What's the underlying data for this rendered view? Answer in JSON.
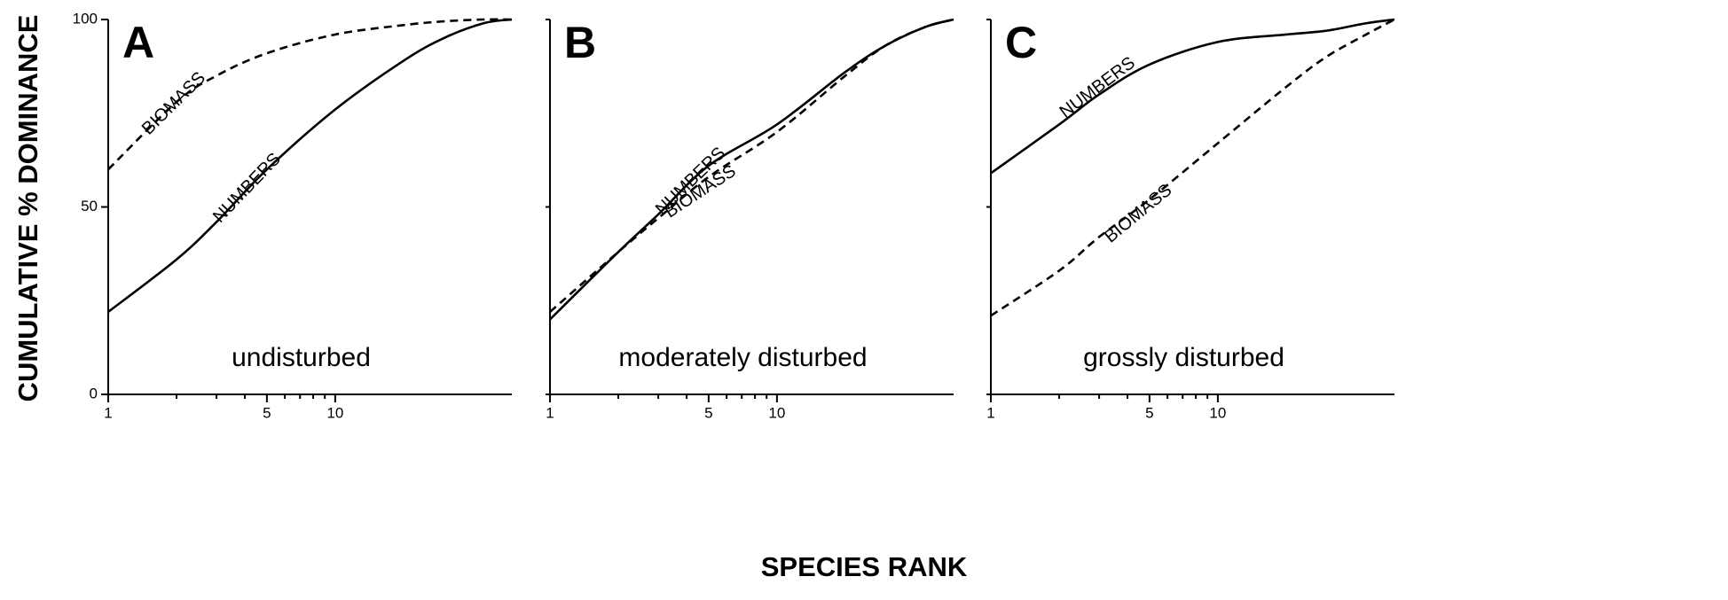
{
  "chart_data": [
    {
      "type": "line",
      "label": "A",
      "annotation": "undisturbed",
      "ylabel": "CUMULATIVE % DOMINANCE",
      "log_x": true,
      "xlim": [
        1,
        60
      ],
      "xticks": [
        1,
        5,
        10
      ],
      "minor_xticks": [
        2,
        3,
        4,
        6,
        7,
        8,
        9
      ],
      "ylim": [
        0,
        100
      ],
      "yticks": [
        0,
        50,
        100
      ],
      "x": [
        1,
        2,
        3,
        5,
        10,
        20,
        30,
        45,
        60
      ],
      "series": [
        {
          "name": "NUMBERS",
          "color": "#000000",
          "style": "solid",
          "values": [
            22,
            36,
            46,
            60,
            76,
            89,
            95,
            99,
            100
          ]
        },
        {
          "name": "BIOMASS",
          "color": "#000000",
          "style": "dashed",
          "values": [
            60,
            78,
            85,
            91,
            96,
            98.5,
            99.5,
            100,
            100
          ]
        }
      ]
    },
    {
      "type": "line",
      "label": "B",
      "annotation": "moderately disturbed",
      "xlabel": "SPECIES RANK",
      "log_x": true,
      "xlim": [
        1,
        60
      ],
      "xticks": [
        1,
        5,
        10
      ],
      "minor_xticks": [
        2,
        3,
        4,
        6,
        7,
        8,
        9
      ],
      "ylim": [
        0,
        100
      ],
      "minor_yticks": [
        0,
        50,
        100
      ],
      "x": [
        1,
        2,
        3,
        5,
        10,
        20,
        30,
        45,
        60
      ],
      "series": [
        {
          "name": "NUMBERS",
          "color": "#000000",
          "style": "solid",
          "values": [
            20,
            38,
            48,
            61,
            72,
            86,
            93,
            98,
            100
          ]
        },
        {
          "name": "BIOMASS",
          "color": "#000000",
          "style": "dashed",
          "values": [
            22,
            38,
            47,
            58,
            70,
            85,
            93,
            98,
            100
          ]
        }
      ]
    },
    {
      "type": "line",
      "label": "C",
      "annotation": "grossly disturbed",
      "log_x": true,
      "xlim": [
        1,
        60
      ],
      "xticks": [
        1,
        5,
        10
      ],
      "minor_xticks": [
        2,
        3,
        4,
        6,
        7,
        8,
        9
      ],
      "ylim": [
        0,
        100
      ],
      "minor_yticks": [
        0,
        50,
        100
      ],
      "x": [
        1,
        2,
        3,
        5,
        10,
        20,
        30,
        45,
        60
      ],
      "series": [
        {
          "name": "NUMBERS",
          "color": "#000000",
          "style": "solid",
          "values": [
            59,
            72,
            80,
            88,
            94,
            96,
            97,
            99,
            100
          ]
        },
        {
          "name": "BIOMASS",
          "color": "#000000",
          "style": "dashed",
          "values": [
            21,
            33,
            42,
            52,
            67,
            82,
            90,
            96,
            100
          ]
        }
      ]
    }
  ]
}
